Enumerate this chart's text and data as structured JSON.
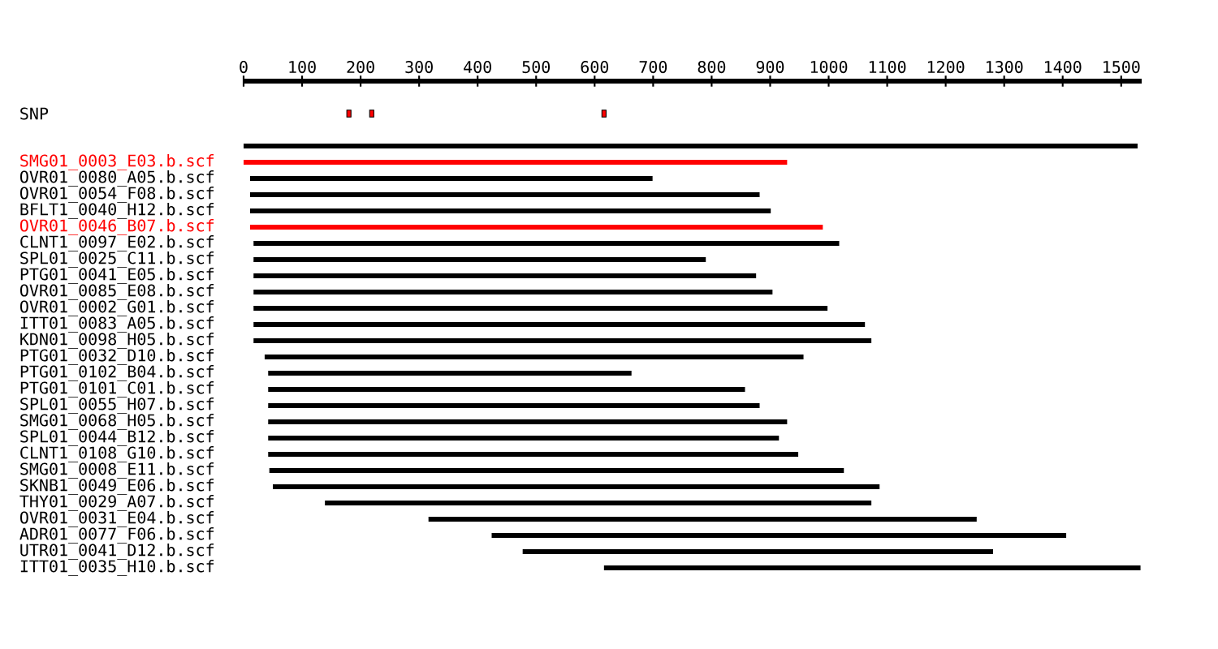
{
  "chart_data": {
    "type": "bar",
    "orientation": "horizontal",
    "categories": [
      "SNP",
      null,
      null,
      "SMG01_0003_E03.b.scf",
      "OVR01_0080_A05.b.scf",
      "OVR01_0054_F08.b.scf",
      "BFLT1_0040_H12.b.scf",
      "OVR01_0046_B07.b.scf",
      "CLNT1_0097_E02.b.scf",
      "SPL01_0025_C11.b.scf",
      "PTG01_0041_E05.b.scf",
      "OVR01_0085_E08.b.scf",
      "OVR01_0002_G01.b.scf",
      "ITT01_0083_A05.b.scf",
      "KDN01_0098_H05.b.scf",
      "PTG01_0032_D10.b.scf",
      "PTG01_0102_B04.b.scf",
      "PTG01_0101_C01.b.scf",
      "SPL01_0055_H07.b.scf",
      "SMG01_0068_H05.b.scf",
      "SPL01_0044_B12.b.scf",
      "CLNT1_0108_G10.b.scf",
      "SMG01_0008_E11.b.scf",
      "SKNB1_0049_E06.b.scf",
      "THY01_0029_A07.b.scf",
      "OVR01_0031_E04.b.scf",
      "ADR01_0077_F06.b.scf",
      "UTR01_0041_D12.b.scf",
      "ITT01_0035_H10.b.scf"
    ],
    "series": [
      {
        "base": [
          null,
          null,
          0,
          0,
          11,
          11,
          11,
          11,
          17,
          17,
          17,
          17,
          17,
          17,
          17,
          36,
          42,
          42,
          42,
          42,
          42,
          42,
          44,
          50,
          139,
          316,
          424,
          477,
          616
        ],
        "values": [
          null,
          null,
          1528,
          929,
          688,
          871,
          890,
          979,
          1001,
          773,
          859,
          887,
          981,
          1045,
          1056,
          921,
          621,
          815,
          840,
          887,
          873,
          906,
          982,
          1037,
          934,
          937,
          982,
          804,
          917
        ],
        "colors": [
          "#000000",
          "#000000",
          "#000000",
          "#ff0000",
          "#000000",
          "#000000",
          "#000000",
          "#ff0000",
          "#000000",
          "#000000",
          "#000000",
          "#000000",
          "#000000",
          "#000000",
          "#000000",
          "#000000",
          "#000000",
          "#000000",
          "#000000",
          "#000000",
          "#000000",
          "#000000",
          "#000000",
          "#000000",
          "#000000",
          "#000000",
          "#000000",
          "#000000",
          "#000000"
        ]
      },
      {
        "type": "scatter",
        "color": "#ff0000",
        "marker": "square",
        "x": [
          "SNP",
          "SNP",
          "SNP"
        ],
        "values": [
          180,
          219,
          616
        ]
      }
    ],
    "xlim": [
      0,
      1535
    ],
    "xticks": [
      0,
      100,
      200,
      300,
      400,
      500,
      600,
      700,
      800,
      900,
      1000,
      1100,
      1200,
      1300,
      1400,
      1500
    ],
    "grid": false
  }
}
